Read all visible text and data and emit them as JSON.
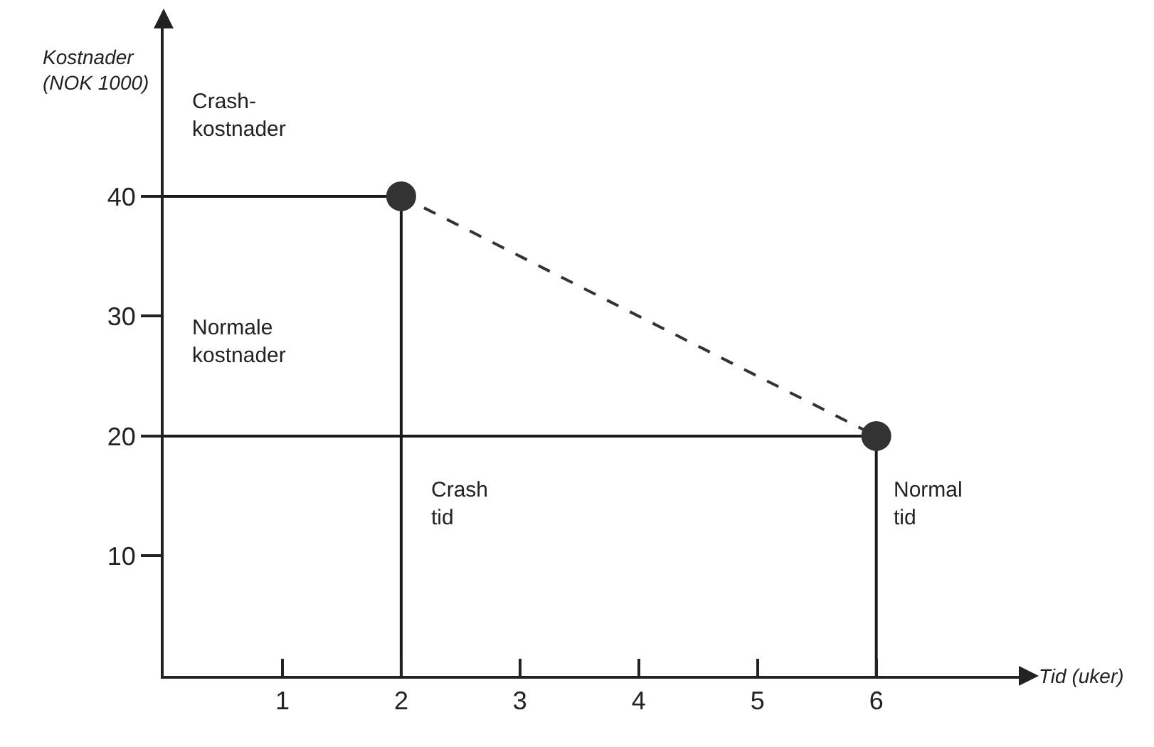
{
  "chart_data": {
    "type": "line",
    "xlabel": "Tid (uker)",
    "ylabel": "Kostnader\n(NOK 1000)",
    "xlim": [
      0,
      7.2
    ],
    "xticks": [
      1,
      2,
      3,
      4,
      5,
      6
    ],
    "ylim": [
      0,
      54
    ],
    "yticks": [
      10,
      20,
      30,
      40
    ],
    "grid": false,
    "series": [
      {
        "x": [
          0,
          2,
          2
        ],
        "values": [
          40,
          40,
          0
        ],
        "color": "#1a1a1a",
        "line_style": "solid",
        "marker": "none"
      },
      {
        "x": [
          0,
          6,
          6
        ],
        "values": [
          20,
          20,
          0
        ],
        "color": "#1a1a1a",
        "line_style": "solid",
        "marker": "none"
      },
      {
        "x": [
          2,
          6
        ],
        "values": [
          40,
          20
        ],
        "color": "#333333",
        "line_style": "dashed",
        "marker": "circle"
      }
    ],
    "annotations": [
      "Crash-\nkostnader",
      "Normale\nkostnader",
      "Crash\ntid",
      "Normal\ntid"
    ]
  }
}
